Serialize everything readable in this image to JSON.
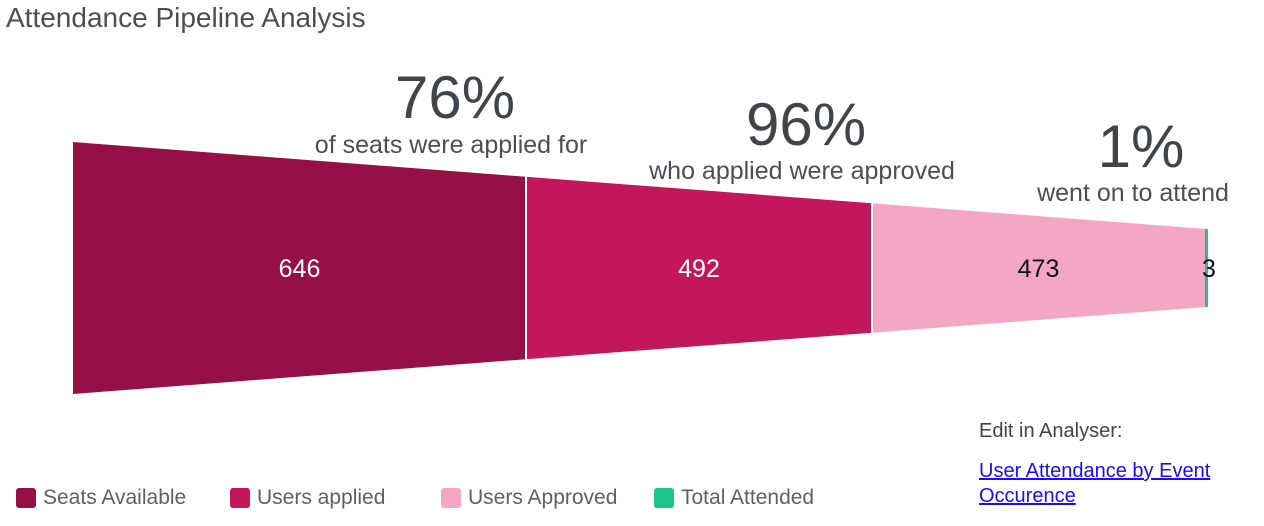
{
  "title": "Attendance Pipeline Analysis",
  "chart_data": {
    "type": "funnel",
    "stages": [
      {
        "name": "Seats Available",
        "value": 646,
        "color": "#941045",
        "label_color": "#ffffff"
      },
      {
        "name": "Users applied",
        "value": 492,
        "color": "#c2185b",
        "label_color": "#ffffff"
      },
      {
        "name": "Users Approved",
        "value": 473,
        "color": "#f4a6c6",
        "label_color": "#111111"
      },
      {
        "name": "Total Attended",
        "value": 3,
        "color": "#1ec48a",
        "label_color": "#111111"
      }
    ],
    "conversions": [
      {
        "percent": "76%",
        "text": "of seats were applied for"
      },
      {
        "percent": "96%",
        "text": "who applied were approved"
      },
      {
        "percent": "1%",
        "text": "went on to attend"
      }
    ]
  },
  "edit": {
    "label": "Edit in Analyser:",
    "link_text": "User Attendance by Event Occurence"
  }
}
